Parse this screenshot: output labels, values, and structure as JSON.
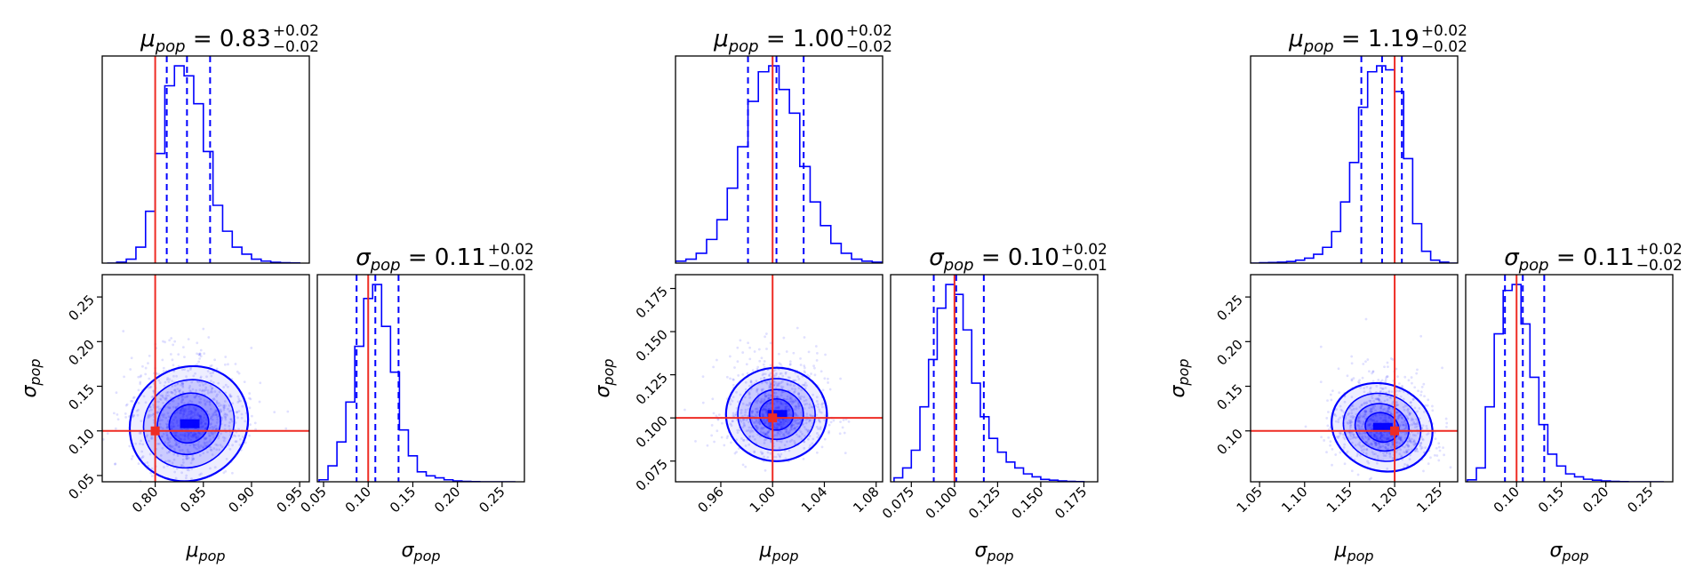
{
  "figure": {
    "colors": {
      "posterior": "#0000ff",
      "truth": "#ee2c24",
      "frame": "#000000"
    }
  },
  "chart_data": [
    {
      "type": "corner",
      "parameters": [
        {
          "symbol": "μ",
          "sub": "pop",
          "median": "0.83",
          "plus": "+0.02",
          "minus": "−0.02",
          "truth": 0.8,
          "q16": 0.812,
          "q50": 0.833,
          "q84": 0.857,
          "lim": [
            0.745,
            0.96
          ],
          "ticks": [
            0.8,
            0.85,
            0.9,
            0.95
          ],
          "tick_labels": [
            "0.80",
            "0.85",
            "0.90",
            "0.95"
          ],
          "hist_x": [
            0.75,
            0.76,
            0.77,
            0.78,
            0.79,
            0.8,
            0.81,
            0.82,
            0.83,
            0.84,
            0.85,
            0.86,
            0.87,
            0.88,
            0.89,
            0.9,
            0.91,
            0.92,
            0.93,
            0.94,
            0.95
          ],
          "hist_y": [
            0,
            0.005,
            0.02,
            0.08,
            0.26,
            0.55,
            0.89,
            0.99,
            0.94,
            0.8,
            0.56,
            0.29,
            0.16,
            0.08,
            0.045,
            0.02,
            0.01,
            0.004,
            0.002,
            0.001
          ]
        },
        {
          "symbol": "σ",
          "sub": "pop",
          "median": "0.11",
          "plus": "+0.02",
          "minus": "−0.02",
          "truth": 0.1,
          "q16": 0.087,
          "q50": 0.108,
          "q84": 0.134,
          "lim": [
            0.043,
            0.275
          ],
          "ticks": [
            0.05,
            0.1,
            0.15,
            0.2,
            0.25
          ],
          "tick_labels": [
            "0.05",
            "0.10",
            "0.15",
            "0.20",
            "0.25"
          ],
          "hist_x": [
            0.045,
            0.055,
            0.065,
            0.075,
            0.085,
            0.095,
            0.105,
            0.115,
            0.125,
            0.135,
            0.145,
            0.155,
            0.165,
            0.175,
            0.185,
            0.195,
            0.205,
            0.215,
            0.225,
            0.235,
            0.245,
            0.255,
            0.265
          ],
          "hist_y": [
            0.01,
            0.08,
            0.2,
            0.4,
            0.68,
            0.92,
            0.99,
            0.78,
            0.55,
            0.26,
            0.13,
            0.05,
            0.03,
            0.02,
            0.01,
            0.004,
            0.002,
            0.001,
            0,
            0,
            0,
            0
          ]
        }
      ],
      "contours": {
        "rx_scale": 0.021,
        "ry_scale": 0.022,
        "angle_deg": 35,
        "center": [
          0.835,
          0.108
        ],
        "levels": [
          1.0,
          1.6,
          2.3,
          3.0
        ]
      }
    },
    {
      "type": "corner",
      "parameters": [
        {
          "symbol": "μ",
          "sub": "pop",
          "median": "1.00",
          "plus": "+0.02",
          "minus": "−0.02",
          "truth": 1.0,
          "q16": 0.981,
          "q50": 1.003,
          "q84": 1.024,
          "lim": [
            0.925,
            1.085
          ],
          "ticks": [
            0.96,
            1.0,
            1.04,
            1.08
          ],
          "tick_labels": [
            "0.96",
            "1.00",
            "1.04",
            "1.08"
          ],
          "hist_x": [
            0.925,
            0.933,
            0.941,
            0.949,
            0.957,
            0.965,
            0.973,
            0.981,
            0.989,
            0.997,
            1.005,
            1.013,
            1.021,
            1.029,
            1.037,
            1.045,
            1.053,
            1.061,
            1.069,
            1.077,
            1.085
          ],
          "hist_y": [
            0.01,
            0.02,
            0.05,
            0.12,
            0.22,
            0.38,
            0.59,
            0.82,
            0.97,
            1.0,
            0.88,
            0.76,
            0.49,
            0.31,
            0.19,
            0.1,
            0.05,
            0.02,
            0.01,
            0.005
          ]
        },
        {
          "symbol": "σ",
          "sub": "pop",
          "median": "0.10",
          "plus": "+0.02",
          "minus": "−0.01",
          "truth": 0.1,
          "q16": 0.088,
          "q50": 0.101,
          "q84": 0.117,
          "lim": [
            0.063,
            0.183
          ],
          "ticks": [
            0.075,
            0.1,
            0.125,
            0.15,
            0.175
          ],
          "tick_labels": [
            "0.075",
            "0.100",
            "0.125",
            "0.150",
            "0.175"
          ],
          "hist_x": [
            0.065,
            0.07,
            0.075,
            0.08,
            0.085,
            0.09,
            0.095,
            0.1,
            0.105,
            0.11,
            0.115,
            0.12,
            0.125,
            0.13,
            0.135,
            0.14,
            0.145,
            0.15,
            0.155,
            0.16,
            0.165,
            0.17,
            0.175
          ],
          "hist_y": [
            0.02,
            0.07,
            0.16,
            0.38,
            0.62,
            0.88,
            1.0,
            0.95,
            0.77,
            0.5,
            0.33,
            0.22,
            0.15,
            0.1,
            0.07,
            0.04,
            0.025,
            0.012,
            0.008,
            0.004,
            0.002,
            0.001
          ]
        }
      ],
      "contours": {
        "rx_scale": 0.013,
        "ry_scale": 0.0095,
        "angle_deg": 0,
        "center": [
          1.003,
          0.102
        ],
        "levels": [
          1.0,
          1.6,
          2.3,
          3.0
        ]
      }
    },
    {
      "type": "corner",
      "parameters": [
        {
          "symbol": "μ",
          "sub": "pop",
          "median": "1.19",
          "plus": "+0.02",
          "minus": "−0.02",
          "truth": 1.2,
          "q16": 1.163,
          "q50": 1.186,
          "q84": 1.208,
          "lim": [
            1.04,
            1.27
          ],
          "ticks": [
            1.05,
            1.1,
            1.15,
            1.2,
            1.25
          ],
          "tick_labels": [
            "1.05",
            "1.10",
            "1.15",
            "1.20",
            "1.25"
          ],
          "hist_x": [
            1.04,
            1.05,
            1.06,
            1.07,
            1.08,
            1.09,
            1.1,
            1.11,
            1.12,
            1.13,
            1.14,
            1.15,
            1.16,
            1.17,
            1.18,
            1.19,
            1.2,
            1.21,
            1.22,
            1.23,
            1.24,
            1.25,
            1.26,
            1.27
          ],
          "hist_y": [
            0,
            0.002,
            0.003,
            0.005,
            0.008,
            0.015,
            0.025,
            0.045,
            0.08,
            0.16,
            0.31,
            0.51,
            0.79,
            0.97,
            1.0,
            0.98,
            0.87,
            0.53,
            0.2,
            0.06,
            0.015,
            0.005,
            0
          ]
        },
        {
          "symbol": "σ",
          "sub": "pop",
          "median": "0.11",
          "plus": "+0.02",
          "minus": "−0.02",
          "truth": 0.1,
          "q16": 0.087,
          "q50": 0.107,
          "q84": 0.131,
          "lim": [
            0.043,
            0.275
          ],
          "ticks": [
            0.1,
            0.15,
            0.2,
            0.25
          ],
          "tick_labels": [
            "0.10",
            "0.15",
            "0.20",
            "0.25"
          ],
          "hist_x": [
            0.045,
            0.055,
            0.065,
            0.075,
            0.085,
            0.095,
            0.105,
            0.115,
            0.125,
            0.135,
            0.145,
            0.155,
            0.165,
            0.175,
            0.185,
            0.195,
            0.205,
            0.215,
            0.225,
            0.235,
            0.245,
            0.255,
            0.265
          ],
          "hist_y": [
            0.01,
            0.07,
            0.38,
            0.75,
            0.97,
            1.0,
            0.8,
            0.53,
            0.29,
            0.14,
            0.08,
            0.04,
            0.025,
            0.013,
            0.008,
            0.004,
            0.002,
            0.001,
            0,
            0,
            0,
            0
          ]
        }
      ],
      "contours": {
        "rx_scale": 0.019,
        "ry_scale": 0.017,
        "angle_deg": -20,
        "center": [
          1.186,
          0.104
        ],
        "levels": [
          1.0,
          1.6,
          2.3,
          3.0
        ]
      }
    }
  ]
}
